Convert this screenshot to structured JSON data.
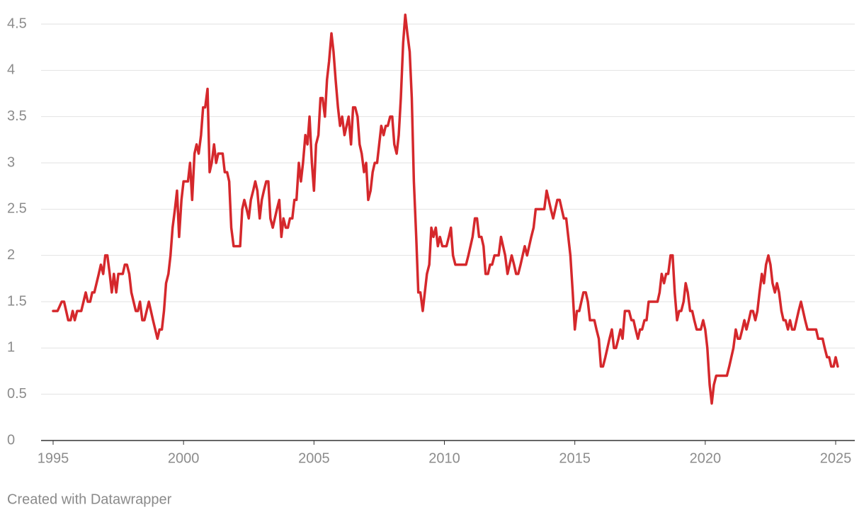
{
  "chart_data": {
    "type": "line",
    "x": [
      1995,
      1995.17,
      1995.33,
      1995.42,
      1995.58,
      1995.67,
      1995.75,
      1995.83,
      1995.92,
      1996.08,
      1996.25,
      1996.33,
      1996.42,
      1996.5,
      1996.58,
      1996.75,
      1996.83,
      1996.92,
      1997,
      1997.08,
      1997.17,
      1997.25,
      1997.33,
      1997.42,
      1997.5,
      1997.67,
      1997.75,
      1997.83,
      1997.92,
      1998,
      1998.17,
      1998.25,
      1998.33,
      1998.42,
      1998.5,
      1998.67,
      1998.83,
      1999,
      1999.08,
      1999.17,
      1999.25,
      1999.33,
      1999.42,
      1999.5,
      1999.58,
      1999.67,
      1999.75,
      1999.83,
      1999.92,
      2000,
      2000.17,
      2000.25,
      2000.33,
      2000.42,
      2000.5,
      2000.58,
      2000.67,
      2000.75,
      2000.83,
      2000.92,
      2001,
      2001.08,
      2001.17,
      2001.25,
      2001.33,
      2001.5,
      2001.58,
      2001.67,
      2001.75,
      2001.83,
      2001.92,
      2002.17,
      2002.25,
      2002.33,
      2002.42,
      2002.5,
      2002.58,
      2002.67,
      2002.75,
      2002.83,
      2002.92,
      2003,
      2003.08,
      2003.17,
      2003.25,
      2003.33,
      2003.42,
      2003.5,
      2003.58,
      2003.67,
      2003.75,
      2003.83,
      2003.92,
      2004,
      2004.08,
      2004.17,
      2004.25,
      2004.33,
      2004.42,
      2004.5,
      2004.58,
      2004.67,
      2004.75,
      2004.83,
      2004.92,
      2005,
      2005.08,
      2005.17,
      2005.25,
      2005.33,
      2005.42,
      2005.5,
      2005.58,
      2005.67,
      2005.75,
      2005.83,
      2005.92,
      2006,
      2006.08,
      2006.17,
      2006.25,
      2006.33,
      2006.42,
      2006.5,
      2006.58,
      2006.67,
      2006.75,
      2006.83,
      2006.92,
      2007,
      2007.08,
      2007.17,
      2007.25,
      2007.33,
      2007.42,
      2007.5,
      2007.58,
      2007.67,
      2007.75,
      2007.83,
      2007.92,
      2008,
      2008.08,
      2008.17,
      2008.25,
      2008.33,
      2008.42,
      2008.5,
      2008.58,
      2008.67,
      2008.75,
      2008.83,
      2008.92,
      2009,
      2009.08,
      2009.17,
      2009.25,
      2009.33,
      2009.42,
      2009.5,
      2009.58,
      2009.67,
      2009.75,
      2009.83,
      2009.92,
      2010.08,
      2010.17,
      2010.25,
      2010.33,
      2010.42,
      2010.83,
      2010.92,
      2011,
      2011.08,
      2011.17,
      2011.25,
      2011.33,
      2011.42,
      2011.5,
      2011.58,
      2011.67,
      2011.75,
      2011.83,
      2011.92,
      2012.08,
      2012.17,
      2012.25,
      2012.33,
      2012.42,
      2012.5,
      2012.58,
      2012.67,
      2012.75,
      2012.83,
      2012.92,
      2013,
      2013.08,
      2013.17,
      2013.25,
      2013.33,
      2013.42,
      2013.5,
      2013.75,
      2013.83,
      2013.92,
      2014,
      2014.08,
      2014.17,
      2014.25,
      2014.33,
      2014.42,
      2014.5,
      2014.58,
      2014.67,
      2014.75,
      2014.83,
      2014.92,
      2015,
      2015.08,
      2015.17,
      2015.25,
      2015.33,
      2015.42,
      2015.5,
      2015.58,
      2015.75,
      2015.83,
      2015.92,
      2016,
      2016.08,
      2016.17,
      2016.25,
      2016.33,
      2016.42,
      2016.5,
      2016.58,
      2016.67,
      2016.75,
      2016.83,
      2016.92,
      2017.08,
      2017.17,
      2017.25,
      2017.33,
      2017.42,
      2017.5,
      2017.58,
      2017.67,
      2017.75,
      2017.83,
      2018.17,
      2018.25,
      2018.33,
      2018.42,
      2018.5,
      2018.58,
      2018.67,
      2018.75,
      2018.83,
      2018.92,
      2019,
      2019.08,
      2019.17,
      2019.25,
      2019.33,
      2019.42,
      2019.5,
      2019.58,
      2019.67,
      2019.83,
      2019.92,
      2020,
      2020.08,
      2020.17,
      2020.25,
      2020.33,
      2020.42,
      2020.83,
      2020.92,
      2021,
      2021.08,
      2021.17,
      2021.25,
      2021.33,
      2021.42,
      2021.5,
      2021.58,
      2021.67,
      2021.75,
      2021.83,
      2021.92,
      2022,
      2022.08,
      2022.17,
      2022.25,
      2022.33,
      2022.42,
      2022.5,
      2022.58,
      2022.67,
      2022.75,
      2022.83,
      2022.92,
      2023,
      2023.08,
      2023.17,
      2023.25,
      2023.33,
      2023.42,
      2023.5,
      2023.58,
      2023.67,
      2023.75,
      2023.83,
      2023.92,
      2024.25,
      2024.33,
      2024.5,
      2024.58,
      2024.67,
      2024.75,
      2024.83,
      2024.92,
      2025,
      2025.08
    ],
    "series": [
      {
        "color": "#d5282c",
        "values": [
          1.4,
          1.4,
          1.5,
          1.5,
          1.3,
          1.3,
          1.4,
          1.3,
          1.4,
          1.4,
          1.6,
          1.5,
          1.5,
          1.6,
          1.6,
          1.8,
          1.9,
          1.8,
          2.0,
          2.0,
          1.8,
          1.6,
          1.8,
          1.6,
          1.8,
          1.8,
          1.9,
          1.9,
          1.8,
          1.6,
          1.4,
          1.4,
          1.5,
          1.3,
          1.3,
          1.5,
          1.3,
          1.1,
          1.2,
          1.2,
          1.4,
          1.7,
          1.8,
          2.0,
          2.3,
          2.5,
          2.7,
          2.2,
          2.6,
          2.8,
          2.8,
          3.0,
          2.6,
          3.1,
          3.2,
          3.1,
          3.3,
          3.6,
          3.6,
          3.8,
          2.9,
          3.0,
          3.2,
          3.0,
          3.1,
          3.1,
          2.9,
          2.9,
          2.8,
          2.3,
          2.1,
          2.1,
          2.5,
          2.6,
          2.5,
          2.4,
          2.6,
          2.7,
          2.8,
          2.7,
          2.4,
          2.6,
          2.7,
          2.8,
          2.8,
          2.4,
          2.3,
          2.4,
          2.5,
          2.6,
          2.2,
          2.4,
          2.3,
          2.3,
          2.4,
          2.4,
          2.6,
          2.6,
          3.0,
          2.8,
          3.0,
          3.3,
          3.2,
          3.5,
          3.0,
          2.7,
          3.2,
          3.3,
          3.7,
          3.7,
          3.5,
          3.9,
          4.1,
          4.4,
          4.2,
          3.9,
          3.6,
          3.4,
          3.5,
          3.3,
          3.4,
          3.5,
          3.2,
          3.6,
          3.6,
          3.5,
          3.2,
          3.1,
          2.9,
          3.0,
          2.6,
          2.7,
          2.9,
          3.0,
          3.0,
          3.2,
          3.4,
          3.3,
          3.4,
          3.4,
          3.5,
          3.5,
          3.2,
          3.1,
          3.3,
          3.7,
          4.3,
          4.6,
          4.4,
          4.2,
          3.7,
          2.8,
          2.2,
          1.6,
          1.6,
          1.4,
          1.6,
          1.8,
          1.9,
          2.3,
          2.2,
          2.3,
          2.1,
          2.2,
          2.1,
          2.1,
          2.2,
          2.3,
          2.0,
          1.9,
          1.9,
          2.0,
          2.1,
          2.2,
          2.4,
          2.4,
          2.2,
          2.2,
          2.1,
          1.8,
          1.8,
          1.9,
          1.9,
          2.0,
          2.0,
          2.2,
          2.1,
          2.0,
          1.8,
          1.9,
          2.0,
          1.9,
          1.8,
          1.8,
          1.9,
          2.0,
          2.1,
          2.0,
          2.1,
          2.2,
          2.3,
          2.5,
          2.5,
          2.5,
          2.7,
          2.6,
          2.5,
          2.4,
          2.5,
          2.6,
          2.6,
          2.5,
          2.4,
          2.4,
          2.2,
          2.0,
          1.6,
          1.2,
          1.4,
          1.4,
          1.5,
          1.6,
          1.6,
          1.5,
          1.3,
          1.3,
          1.2,
          1.1,
          0.8,
          0.8,
          0.9,
          1.0,
          1.1,
          1.2,
          1.0,
          1.0,
          1.1,
          1.2,
          1.1,
          1.4,
          1.4,
          1.3,
          1.3,
          1.2,
          1.1,
          1.2,
          1.2,
          1.3,
          1.3,
          1.5,
          1.5,
          1.6,
          1.8,
          1.7,
          1.8,
          1.8,
          2.0,
          2.0,
          1.6,
          1.3,
          1.4,
          1.4,
          1.5,
          1.7,
          1.6,
          1.4,
          1.4,
          1.3,
          1.2,
          1.2,
          1.3,
          1.2,
          1.0,
          0.6,
          0.4,
          0.6,
          0.7,
          0.7,
          0.8,
          0.9,
          1.0,
          1.2,
          1.1,
          1.1,
          1.2,
          1.3,
          1.2,
          1.3,
          1.4,
          1.4,
          1.3,
          1.4,
          1.6,
          1.8,
          1.7,
          1.9,
          2.0,
          1.9,
          1.7,
          1.6,
          1.7,
          1.6,
          1.4,
          1.3,
          1.3,
          1.2,
          1.3,
          1.2,
          1.2,
          1.3,
          1.4,
          1.5,
          1.4,
          1.3,
          1.2,
          1.2,
          1.1,
          1.1,
          1.0,
          0.9,
          0.9,
          0.8,
          0.8,
          0.9,
          0.8
        ]
      }
    ],
    "xlim": [
      1995,
      2025
    ],
    "xticks": [
      1995,
      2000,
      2005,
      2010,
      2015,
      2020,
      2025
    ],
    "ylim": [
      0,
      4.5
    ],
    "yticks": [
      0,
      0.5,
      1,
      1.5,
      2,
      2.5,
      3,
      3.5,
      4,
      4.5
    ],
    "grid": true,
    "source": "Created with Datawrapper"
  }
}
